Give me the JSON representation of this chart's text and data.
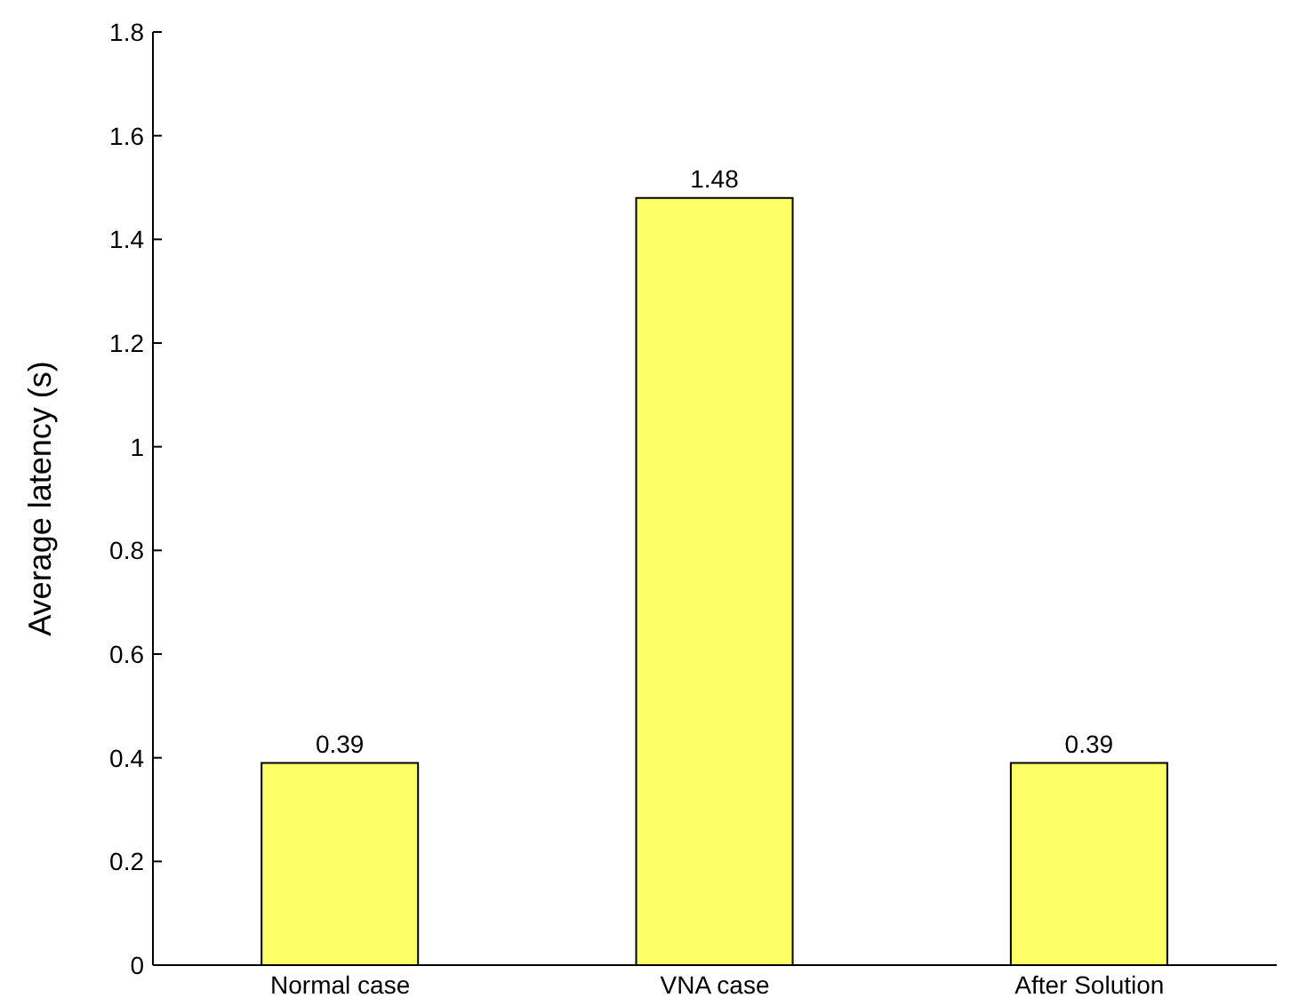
{
  "chart_data": {
    "type": "bar",
    "ylabel": "Average latency (s)",
    "categories": [
      "Normal case",
      "VNA case",
      "After Solution"
    ],
    "values": [
      0.39,
      1.48,
      0.39
    ],
    "color": "#ffff66",
    "data_labels": true,
    "ylim": [
      0,
      1.8
    ],
    "yticks": [
      0,
      0.2,
      0.4,
      0.6,
      0.8,
      1,
      1.2,
      1.4,
      1.6,
      1.8
    ],
    "grid": false,
    "legend": false
  }
}
